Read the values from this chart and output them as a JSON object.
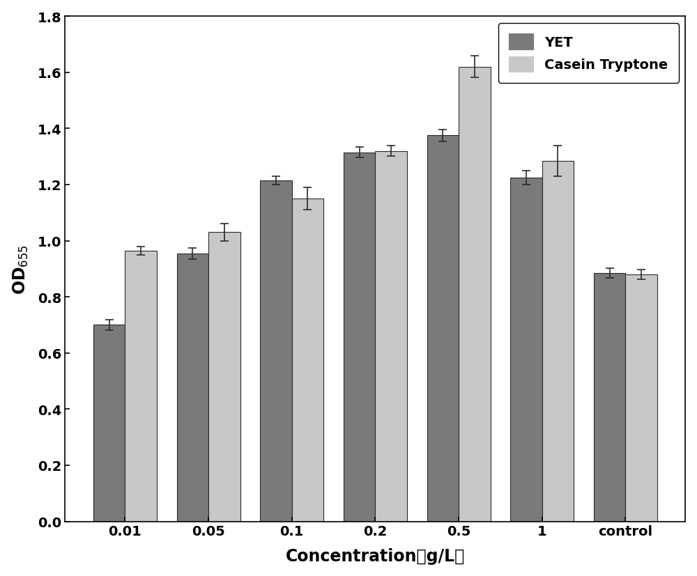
{
  "categories": [
    "0.01",
    "0.05",
    "0.1",
    "0.2",
    "0.5",
    "1",
    "control"
  ],
  "yet_values": [
    0.7,
    0.955,
    1.215,
    1.315,
    1.375,
    1.225,
    0.885
  ],
  "casein_values": [
    0.965,
    1.03,
    1.15,
    1.32,
    1.62,
    1.285,
    0.88
  ],
  "yet_errors": [
    0.018,
    0.02,
    0.015,
    0.018,
    0.02,
    0.025,
    0.018
  ],
  "casein_errors": [
    0.015,
    0.03,
    0.04,
    0.018,
    0.038,
    0.055,
    0.018
  ],
  "yet_color": "#7a7a7a",
  "casein_color": "#c8c8c8",
  "bar_edge_color": "#2a2a2a",
  "xlabel": "Concentration（g/L）",
  "ylabel": "OD$_{655}$",
  "ylim": [
    0.0,
    1.8
  ],
  "yticks": [
    0.0,
    0.2,
    0.4,
    0.6,
    0.8,
    1.0,
    1.2,
    1.4,
    1.6,
    1.8
  ],
  "legend_labels": [
    "YET",
    "Casein Tryptone"
  ],
  "bar_width": 0.38,
  "figure_bg": "#ffffff",
  "label_fontsize": 17,
  "tick_fontsize": 14,
  "legend_fontsize": 14
}
